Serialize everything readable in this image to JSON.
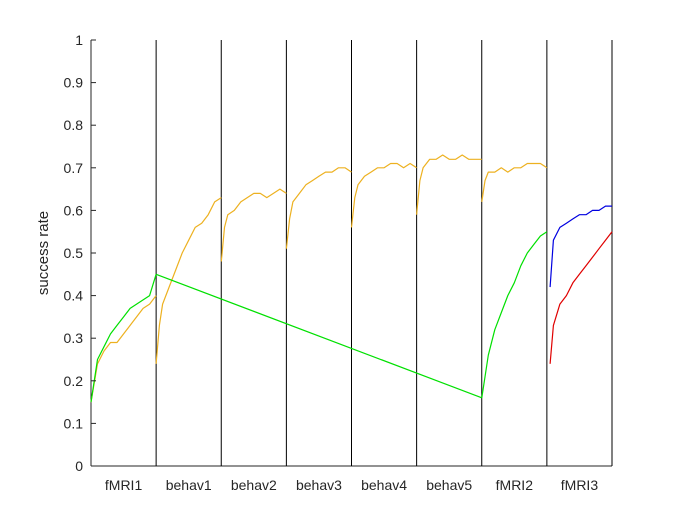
{
  "chart_data": {
    "type": "line",
    "ylabel": "success rate",
    "xlabel": "",
    "ylim": [
      0,
      1
    ],
    "yticks": [
      "0",
      "0.1",
      "0.2",
      "0.3",
      "0.4",
      "0.5",
      "0.6",
      "0.7",
      "0.8",
      "0.9",
      "1"
    ],
    "session_labels": [
      "fMRI1",
      "behav1",
      "behav2",
      "behav3",
      "behav4",
      "behav5",
      "fMRI2",
      "fMRI3"
    ],
    "grid": false,
    "legend": "none",
    "series": [
      {
        "color": "#EDB120",
        "segments": [
          [
            [
              0.0,
              0.15
            ],
            [
              0.1,
              0.24
            ],
            [
              0.2,
              0.27
            ],
            [
              0.3,
              0.29
            ],
            [
              0.4,
              0.29
            ],
            [
              0.5,
              0.31
            ],
            [
              0.6,
              0.33
            ],
            [
              0.7,
              0.35
            ],
            [
              0.8,
              0.37
            ],
            [
              0.9,
              0.38
            ],
            [
              1.0,
              0.4
            ]
          ],
          [
            [
              1.0,
              0.24
            ],
            [
              1.05,
              0.33
            ],
            [
              1.1,
              0.38
            ],
            [
              1.2,
              0.42
            ],
            [
              1.3,
              0.46
            ],
            [
              1.4,
              0.5
            ],
            [
              1.5,
              0.53
            ],
            [
              1.6,
              0.56
            ],
            [
              1.7,
              0.57
            ],
            [
              1.8,
              0.59
            ],
            [
              1.9,
              0.62
            ],
            [
              2.0,
              0.63
            ]
          ],
          [
            [
              2.0,
              0.48
            ],
            [
              2.05,
              0.56
            ],
            [
              2.1,
              0.59
            ],
            [
              2.2,
              0.6
            ],
            [
              2.3,
              0.62
            ],
            [
              2.4,
              0.63
            ],
            [
              2.5,
              0.64
            ],
            [
              2.6,
              0.64
            ],
            [
              2.7,
              0.63
            ],
            [
              2.8,
              0.64
            ],
            [
              2.9,
              0.65
            ],
            [
              3.0,
              0.64
            ]
          ],
          [
            [
              3.0,
              0.51
            ],
            [
              3.05,
              0.58
            ],
            [
              3.1,
              0.62
            ],
            [
              3.2,
              0.64
            ],
            [
              3.3,
              0.66
            ],
            [
              3.4,
              0.67
            ],
            [
              3.5,
              0.68
            ],
            [
              3.6,
              0.69
            ],
            [
              3.7,
              0.69
            ],
            [
              3.8,
              0.7
            ],
            [
              3.9,
              0.7
            ],
            [
              4.0,
              0.69
            ]
          ],
          [
            [
              4.0,
              0.56
            ],
            [
              4.05,
              0.63
            ],
            [
              4.1,
              0.66
            ],
            [
              4.2,
              0.68
            ],
            [
              4.3,
              0.69
            ],
            [
              4.4,
              0.7
            ],
            [
              4.5,
              0.7
            ],
            [
              4.6,
              0.71
            ],
            [
              4.7,
              0.71
            ],
            [
              4.8,
              0.7
            ],
            [
              4.9,
              0.71
            ],
            [
              5.0,
              0.7
            ]
          ],
          [
            [
              5.0,
              0.59
            ],
            [
              5.05,
              0.67
            ],
            [
              5.1,
              0.7
            ],
            [
              5.2,
              0.72
            ],
            [
              5.3,
              0.72
            ],
            [
              5.4,
              0.73
            ],
            [
              5.5,
              0.72
            ],
            [
              5.6,
              0.72
            ],
            [
              5.7,
              0.73
            ],
            [
              5.8,
              0.72
            ],
            [
              5.9,
              0.72
            ],
            [
              6.0,
              0.72
            ]
          ],
          [
            [
              6.0,
              0.62
            ],
            [
              6.05,
              0.67
            ],
            [
              6.1,
              0.69
            ],
            [
              6.2,
              0.69
            ],
            [
              6.3,
              0.7
            ],
            [
              6.4,
              0.69
            ],
            [
              6.5,
              0.7
            ],
            [
              6.6,
              0.7
            ],
            [
              6.7,
              0.71
            ],
            [
              6.8,
              0.71
            ],
            [
              6.9,
              0.71
            ],
            [
              7.0,
              0.7
            ]
          ]
        ]
      },
      {
        "color": "#00E000",
        "segments": [
          [
            [
              0.0,
              0.15
            ],
            [
              0.1,
              0.25
            ],
            [
              0.2,
              0.28
            ],
            [
              0.3,
              0.31
            ],
            [
              0.4,
              0.33
            ],
            [
              0.5,
              0.35
            ],
            [
              0.6,
              0.37
            ],
            [
              0.7,
              0.38
            ],
            [
              0.8,
              0.39
            ],
            [
              0.9,
              0.4
            ],
            [
              1.0,
              0.45
            ]
          ],
          [
            [
              1.0,
              0.45
            ],
            [
              6.0,
              0.16
            ]
          ],
          [
            [
              6.0,
              0.16
            ],
            [
              6.1,
              0.26
            ],
            [
              6.2,
              0.32
            ],
            [
              6.3,
              0.36
            ],
            [
              6.4,
              0.4
            ],
            [
              6.5,
              0.43
            ],
            [
              6.6,
              0.47
            ],
            [
              6.7,
              0.5
            ],
            [
              6.8,
              0.52
            ],
            [
              6.9,
              0.54
            ],
            [
              7.0,
              0.55
            ]
          ]
        ]
      },
      {
        "color": "#0000E0",
        "segments": [
          [
            [
              7.05,
              0.42
            ],
            [
              7.1,
              0.53
            ],
            [
              7.2,
              0.56
            ],
            [
              7.3,
              0.57
            ],
            [
              7.4,
              0.58
            ],
            [
              7.5,
              0.59
            ],
            [
              7.6,
              0.59
            ],
            [
              7.7,
              0.6
            ],
            [
              7.8,
              0.6
            ],
            [
              7.9,
              0.61
            ],
            [
              8.0,
              0.61
            ]
          ]
        ]
      },
      {
        "color": "#E00000",
        "segments": [
          [
            [
              7.05,
              0.24
            ],
            [
              7.1,
              0.33
            ],
            [
              7.2,
              0.38
            ],
            [
              7.3,
              0.4
            ],
            [
              7.4,
              0.43
            ],
            [
              7.5,
              0.45
            ],
            [
              7.6,
              0.47
            ],
            [
              7.7,
              0.49
            ],
            [
              7.8,
              0.51
            ],
            [
              7.9,
              0.53
            ],
            [
              8.0,
              0.55
            ]
          ]
        ]
      }
    ]
  }
}
